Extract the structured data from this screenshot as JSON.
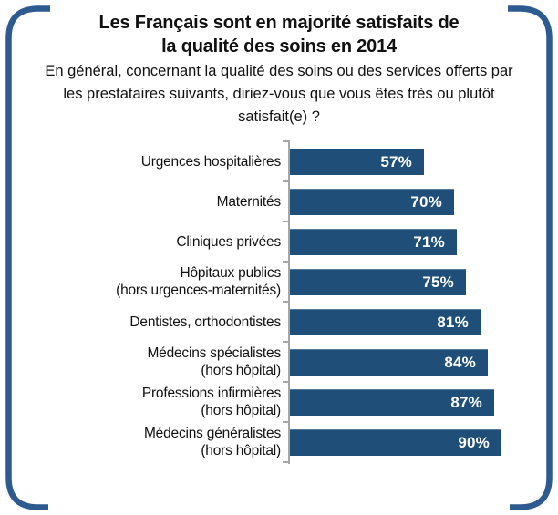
{
  "frame": {
    "border_color": "#2E5B8F"
  },
  "header": {
    "title_lines": [
      "Les Français sont en majorité satisfaits de",
      "la qualité des soins en 2014"
    ],
    "subtitle_lines": [
      "En général, concernant la qualité des soins ou des services offerts par",
      "les prestataires suivants, diriez-vous que vous êtes très ou plutôt",
      "satisfait(e) ?"
    ]
  },
  "chart_data": {
    "type": "bar",
    "orientation": "horizontal",
    "title": "Les Français sont en majorité satisfaits de la qualité des soins en 2014",
    "subtitle": "En général, concernant la qualité des soins ou des services offerts par les prestataires suivants, diriez-vous que vous êtes très ou plutôt satisfait(e) ?",
    "categories": [
      [
        "Urgences hospitalières"
      ],
      [
        "Maternités"
      ],
      [
        "Cliniques privées"
      ],
      [
        "Hôpitaux publics",
        "(hors urgences-maternités)"
      ],
      [
        "Dentistes, orthodontistes"
      ],
      [
        "Médecins spécialistes",
        "(hors hôpital)"
      ],
      [
        "Professions infirmières",
        "(hors hôpital)"
      ],
      [
        "Médecins généralistes",
        "(hors hôpital)"
      ]
    ],
    "values": [
      57,
      70,
      71,
      75,
      81,
      84,
      87,
      90
    ],
    "value_labels": [
      "57%",
      "70%",
      "71%",
      "75%",
      "81%",
      "84%",
      "87%",
      "90%"
    ],
    "unit": "%",
    "xlim": [
      0,
      93
    ],
    "grid": false,
    "legend": false,
    "bar_color": "#1F4E79",
    "value_text_color": "#FFFFFF",
    "axis_color": "#A6A6A6"
  }
}
